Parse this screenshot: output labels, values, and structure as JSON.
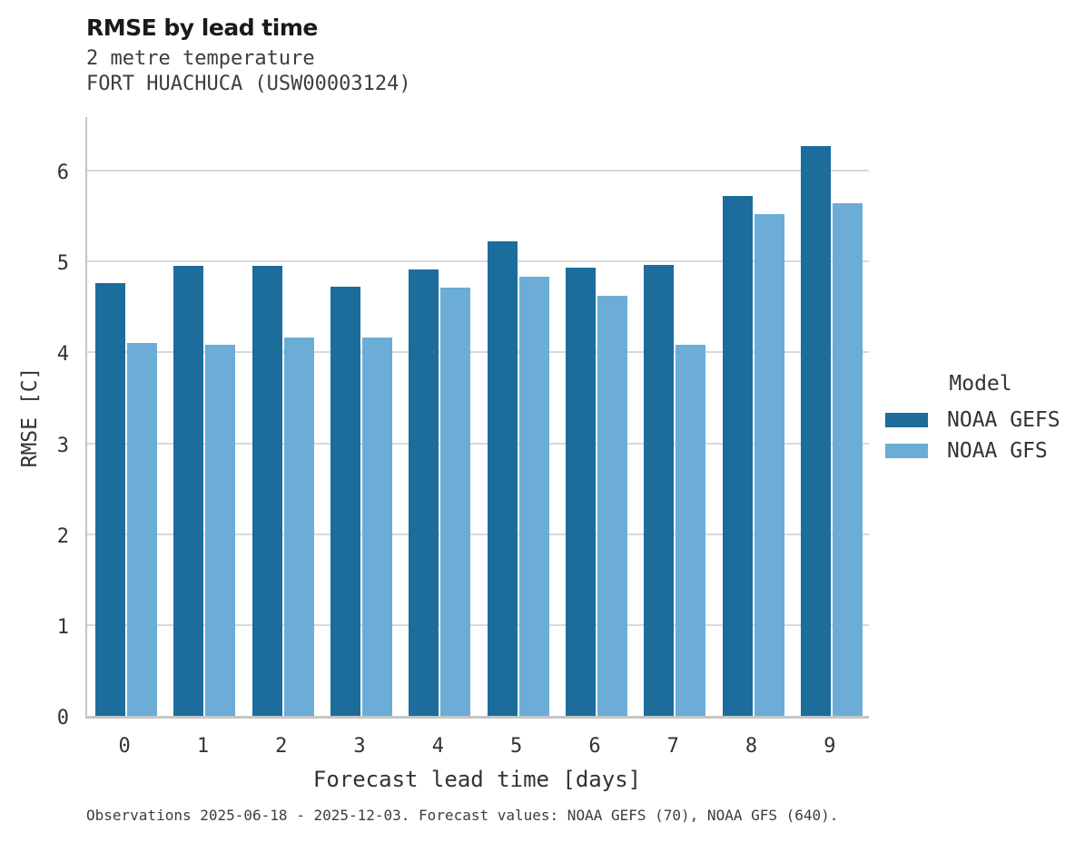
{
  "header": {
    "title": "RMSE by lead time",
    "subtitle": "2 metre temperature",
    "station": "FORT HUACHUCA (USW00003124)"
  },
  "chart_data": {
    "type": "bar",
    "title": "RMSE by lead time",
    "categories": [
      "0",
      "1",
      "2",
      "3",
      "4",
      "5",
      "6",
      "7",
      "8",
      "9"
    ],
    "series": [
      {
        "name": "NOAA GEFS",
        "color": "#1c6d9c",
        "values": [
          4.76,
          4.95,
          4.95,
          4.72,
          4.91,
          5.22,
          4.93,
          4.96,
          5.72,
          6.27
        ]
      },
      {
        "name": "NOAA GFS",
        "color": "#6badd6",
        "values": [
          4.1,
          4.08,
          4.16,
          4.16,
          4.71,
          4.83,
          4.62,
          4.08,
          5.52,
          5.64
        ]
      }
    ],
    "xlabel": "Forecast lead time [days]",
    "ylabel": "RMSE [C]",
    "ylim": [
      0,
      6.62
    ],
    "yticks": [
      0,
      1,
      2,
      3,
      4,
      5,
      6
    ],
    "grid": "horizontal",
    "legend": {
      "title": "Model",
      "position": "right"
    }
  },
  "footer": {
    "caption": "Observations 2025-06-18 - 2025-12-03. Forecast values: NOAA GEFS (70), NOAA GFS (640)."
  }
}
